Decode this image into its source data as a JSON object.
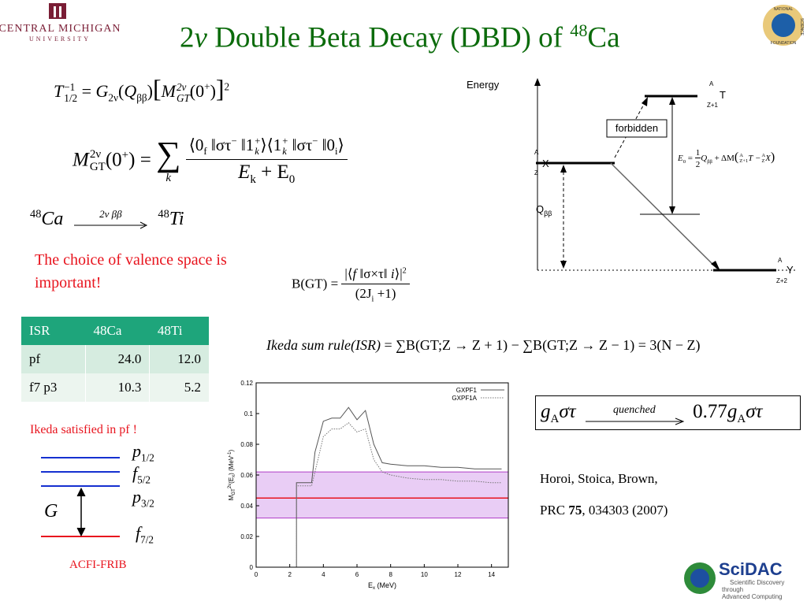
{
  "header": {
    "title": [
      "2",
      "ν",
      " Double Beta Decay (DBD) of ",
      "48",
      "Ca"
    ],
    "university": [
      "CENTRAL MICHIGAN",
      "UNIVERSITY"
    ],
    "nsf": [
      "NATIONAL",
      "SCIENCE",
      "FOUNDATION"
    ]
  },
  "formulas": {
    "half_life": [
      "T",
      "−1",
      "1/2",
      "=",
      "G",
      "2ν",
      "(",
      "Q",
      "ββ",
      ")",
      "[",
      "M",
      "2ν",
      "GT",
      "(0",
      "+",
      ")",
      "]",
      "2"
    ],
    "matrix_element": [
      "M",
      "2ν",
      "GT",
      "(0",
      "+",
      ") =",
      "∑",
      "k",
      "⟨0",
      "f",
      " ‖στ",
      "−",
      " ‖1",
      "+",
      "k",
      "⟩⟨1",
      "+",
      "k",
      " ‖στ",
      "−",
      " ‖0",
      "i",
      "⟩",
      "E",
      "k",
      " + E",
      "0"
    ],
    "reaction": [
      "48",
      "Ca",
      "2ν ββ",
      "48",
      "Ti"
    ],
    "bgt": [
      "B(GT) =",
      "|⟨",
      "f",
      " ‖σ×τ‖ ",
      "i",
      "⟩|",
      "2",
      "(2J",
      "i",
      " +1)"
    ],
    "ikeda": [
      "Ikeda sum rule(ISR)",
      " = ∑B(GT;Z → Z + 1) − ∑B(GT;Z → Z − 1) = 3(N − Z)"
    ],
    "quenching": [
      "g",
      "A",
      "στ",
      "quenched",
      "0.77",
      "g",
      "A",
      "στ"
    ]
  },
  "notes": {
    "valence": "The choice of valence space is important!",
    "ikeda": "Ikeda satisfied in pf !",
    "credit": "ACFI-FRIB"
  },
  "table": {
    "header": [
      "ISR",
      "48Ca",
      "48Ti"
    ],
    "rows": [
      [
        "pf",
        "24.0",
        "12.0"
      ],
      [
        "f7 p3",
        "10.3",
        "5.2"
      ]
    ]
  },
  "levels": [
    [
      "p",
      "1/2"
    ],
    [
      "f",
      "5/2"
    ],
    [
      "p",
      "3/2"
    ],
    [
      "f",
      "7/2"
    ]
  ],
  "levels_gap": "G",
  "energy_diagram": {
    "energy": "Energy",
    "forbidden": "forbidden",
    "q": [
      "Q",
      "ββ"
    ],
    "parent_T": [
      "A",
      "Z+1",
      "T"
    ],
    "parent_X": [
      "A",
      "Z",
      "X"
    ],
    "daughter_Y": [
      "A",
      "Z+2",
      "Y"
    ],
    "e0": [
      "E",
      "0",
      "=",
      "1",
      "2",
      "Q",
      "ββ",
      "+ ΔM",
      "(",
      "A",
      "Z+1",
      "T −",
      "A",
      "Z",
      "X",
      ")"
    ]
  },
  "reference": [
    "Horoi, Stoica, Brown,",
    "PRC ",
    "75",
    ", 034303 (2007)"
  ],
  "scidac": [
    "SciDAC",
    "Scientific Discovery",
    "through",
    "Advanced Computing"
  ],
  "chart_data": {
    "type": "line",
    "x_label": [
      "E",
      "x",
      " (MeV)"
    ],
    "y_label": [
      "M",
      "GT",
      "2ν",
      "(E",
      "x",
      ") (MeV",
      "-1",
      ")"
    ],
    "x": [
      0,
      2.4,
      2.4,
      3.3,
      3.5,
      4,
      4.5,
      5,
      5.5,
      6,
      6.5,
      7,
      7.5,
      8,
      9,
      10,
      11,
      12,
      13,
      14,
      14.6
    ],
    "series": [
      {
        "name": "GXPF1",
        "color": "#555555",
        "style": "solid",
        "values": [
          0,
          0,
          0.055,
          0.055,
          0.075,
          0.095,
          0.097,
          0.097,
          0.104,
          0.096,
          0.102,
          0.08,
          0.068,
          0.067,
          0.066,
          0.066,
          0.065,
          0.065,
          0.064,
          0.064,
          0.064
        ]
      },
      {
        "name": "GXPF1A",
        "color": "#777777",
        "style": "dotted",
        "values": [
          0,
          0,
          0.053,
          0.053,
          0.062,
          0.085,
          0.09,
          0.09,
          0.094,
          0.088,
          0.09,
          0.07,
          0.062,
          0.06,
          0.058,
          0.057,
          0.057,
          0.056,
          0.056,
          0.055,
          0.055
        ]
      }
    ],
    "band": [
      0.032,
      0.062
    ],
    "band_color": "#e9cdf5",
    "band_edge_color": "#b03cc8",
    "reference_line": 0.045,
    "reference_color": "#e8141e",
    "xlim": [
      0,
      15
    ],
    "xticks": [
      0,
      2,
      4,
      6,
      8,
      10,
      12,
      14
    ],
    "ylim": [
      0,
      0.12
    ],
    "yticks": [
      0,
      0.02,
      0.04,
      0.06,
      0.08,
      0.1,
      0.12
    ],
    "legend": "upper right"
  }
}
